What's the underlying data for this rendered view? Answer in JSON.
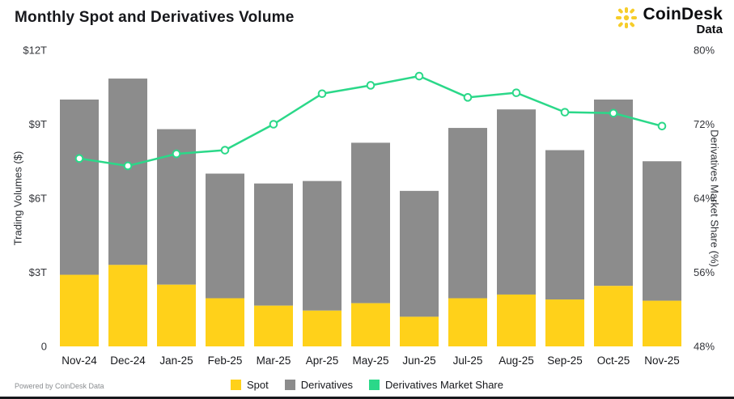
{
  "header": {
    "title": "Monthly Spot and Derivatives Volume",
    "brand": {
      "name": "CoinDesk",
      "sub": "Data"
    }
  },
  "footer": {
    "powered_by": "Powered by CoinDesk Data"
  },
  "colors": {
    "spot": "#FFD11A",
    "derivatives": "#8C8C8C",
    "market_share_line": "#2BD889",
    "axis_text": "#33353a",
    "x_label_text": "#17181c"
  },
  "legend": [
    {
      "label": "Spot",
      "color": "#FFD11A"
    },
    {
      "label": "Derivatives",
      "color": "#8C8C8C"
    },
    {
      "label": "Derivatives Market Share",
      "color": "#2BD889"
    }
  ],
  "chart_data": {
    "type": "bar",
    "stacked": true,
    "title": "Monthly Spot and Derivatives Volume",
    "categories": [
      "Nov-24",
      "Dec-24",
      "Jan-25",
      "Feb-25",
      "Mar-25",
      "Apr-25",
      "May-25",
      "Jun-25",
      "Jul-25",
      "Aug-25",
      "Sep-25",
      "Oct-25",
      "Nov-25"
    ],
    "series": [
      {
        "name": "Spot",
        "unit": "$T",
        "color": "#FFD11A",
        "values": [
          2.9,
          3.3,
          2.5,
          1.95,
          1.65,
          1.45,
          1.75,
          1.2,
          1.95,
          2.1,
          1.9,
          2.45,
          1.85
        ]
      },
      {
        "name": "Derivatives",
        "unit": "$T",
        "color": "#8C8C8C",
        "values": [
          7.1,
          7.55,
          6.3,
          5.05,
          4.95,
          5.25,
          6.5,
          5.1,
          6.9,
          7.5,
          6.05,
          7.55,
          5.65
        ]
      }
    ],
    "line_series": {
      "name": "Derivatives Market Share",
      "unit": "%",
      "axis": "right",
      "color": "#2BD889",
      "values": [
        68.3,
        67.5,
        68.8,
        69.2,
        72.0,
        75.3,
        76.2,
        77.2,
        74.9,
        75.4,
        73.3,
        73.2,
        71.8
      ]
    },
    "left_axis": {
      "label": "Trading Volumes ($)",
      "min": 0,
      "max": 12,
      "tick_values": [
        0,
        3,
        6,
        9,
        12
      ],
      "ticks": [
        "0",
        "$3T",
        "$6T",
        "$9T",
        "$12T"
      ]
    },
    "right_axis": {
      "label": "Derivatives Market Share (%)",
      "min": 48,
      "max": 80,
      "tick_values": [
        48,
        56,
        64,
        72,
        80
      ],
      "ticks": [
        "48%",
        "56%",
        "64%",
        "72%",
        "80%"
      ]
    },
    "grid": false,
    "legend_position": "bottom"
  }
}
